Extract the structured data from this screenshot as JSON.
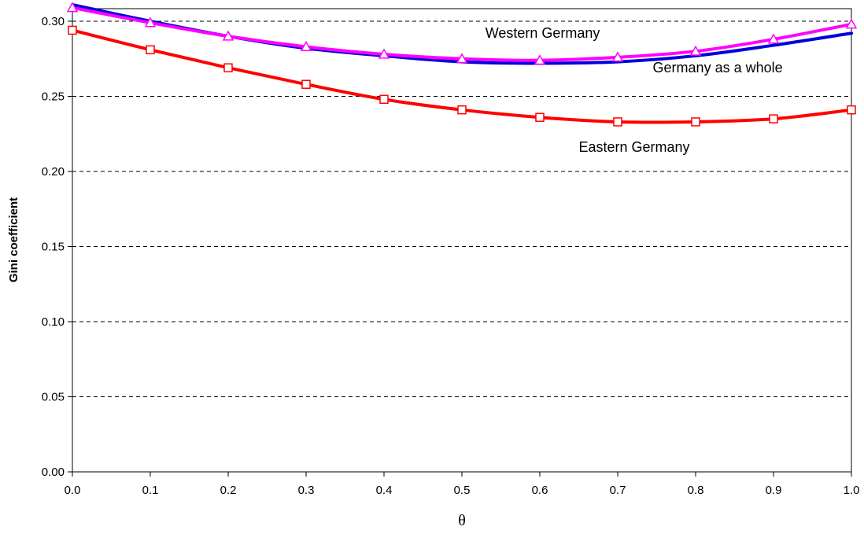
{
  "chart_data": {
    "type": "line",
    "xlabel": "θ",
    "ylabel": "Gini coefficient",
    "xlim": [
      0.0,
      1.0
    ],
    "ylim": [
      0.0,
      0.31
    ],
    "x": [
      0.0,
      0.1,
      0.2,
      0.3,
      0.4,
      0.5,
      0.6,
      0.7,
      0.8,
      0.9,
      1.0
    ],
    "x_ticks": [
      "0.0",
      "0.1",
      "0.2",
      "0.3",
      "0.4",
      "0.5",
      "0.6",
      "0.7",
      "0.8",
      "0.9",
      "1.0"
    ],
    "y_ticks": [
      "0.00",
      "0.05",
      "0.10",
      "0.15",
      "0.20",
      "0.25",
      "0.30"
    ],
    "grid": "horizontal dashed",
    "series": [
      {
        "name": "Germany as a whole",
        "color": "#0000dd",
        "marker": "none",
        "values": [
          0.311,
          0.3,
          0.29,
          0.282,
          0.277,
          0.273,
          0.272,
          0.273,
          0.277,
          0.284,
          0.292
        ]
      },
      {
        "name": "Western Germany",
        "color": "#ff00ff",
        "marker": "triangle",
        "values": [
          0.309,
          0.299,
          0.29,
          0.283,
          0.278,
          0.275,
          0.274,
          0.276,
          0.28,
          0.288,
          0.298
        ]
      },
      {
        "name": "Eastern Germany",
        "color": "#ff0000",
        "marker": "square",
        "values": [
          0.294,
          0.281,
          0.269,
          0.258,
          0.248,
          0.241,
          0.236,
          0.233,
          0.233,
          0.235,
          0.241
        ]
      }
    ],
    "annotations": [
      {
        "text": "Western Germany",
        "x": 0.53,
        "y": 0.289
      },
      {
        "text": "Germany as a whole",
        "x": 0.745,
        "y": 0.266
      },
      {
        "text": "Eastern Germany",
        "x": 0.65,
        "y": 0.213
      }
    ]
  }
}
